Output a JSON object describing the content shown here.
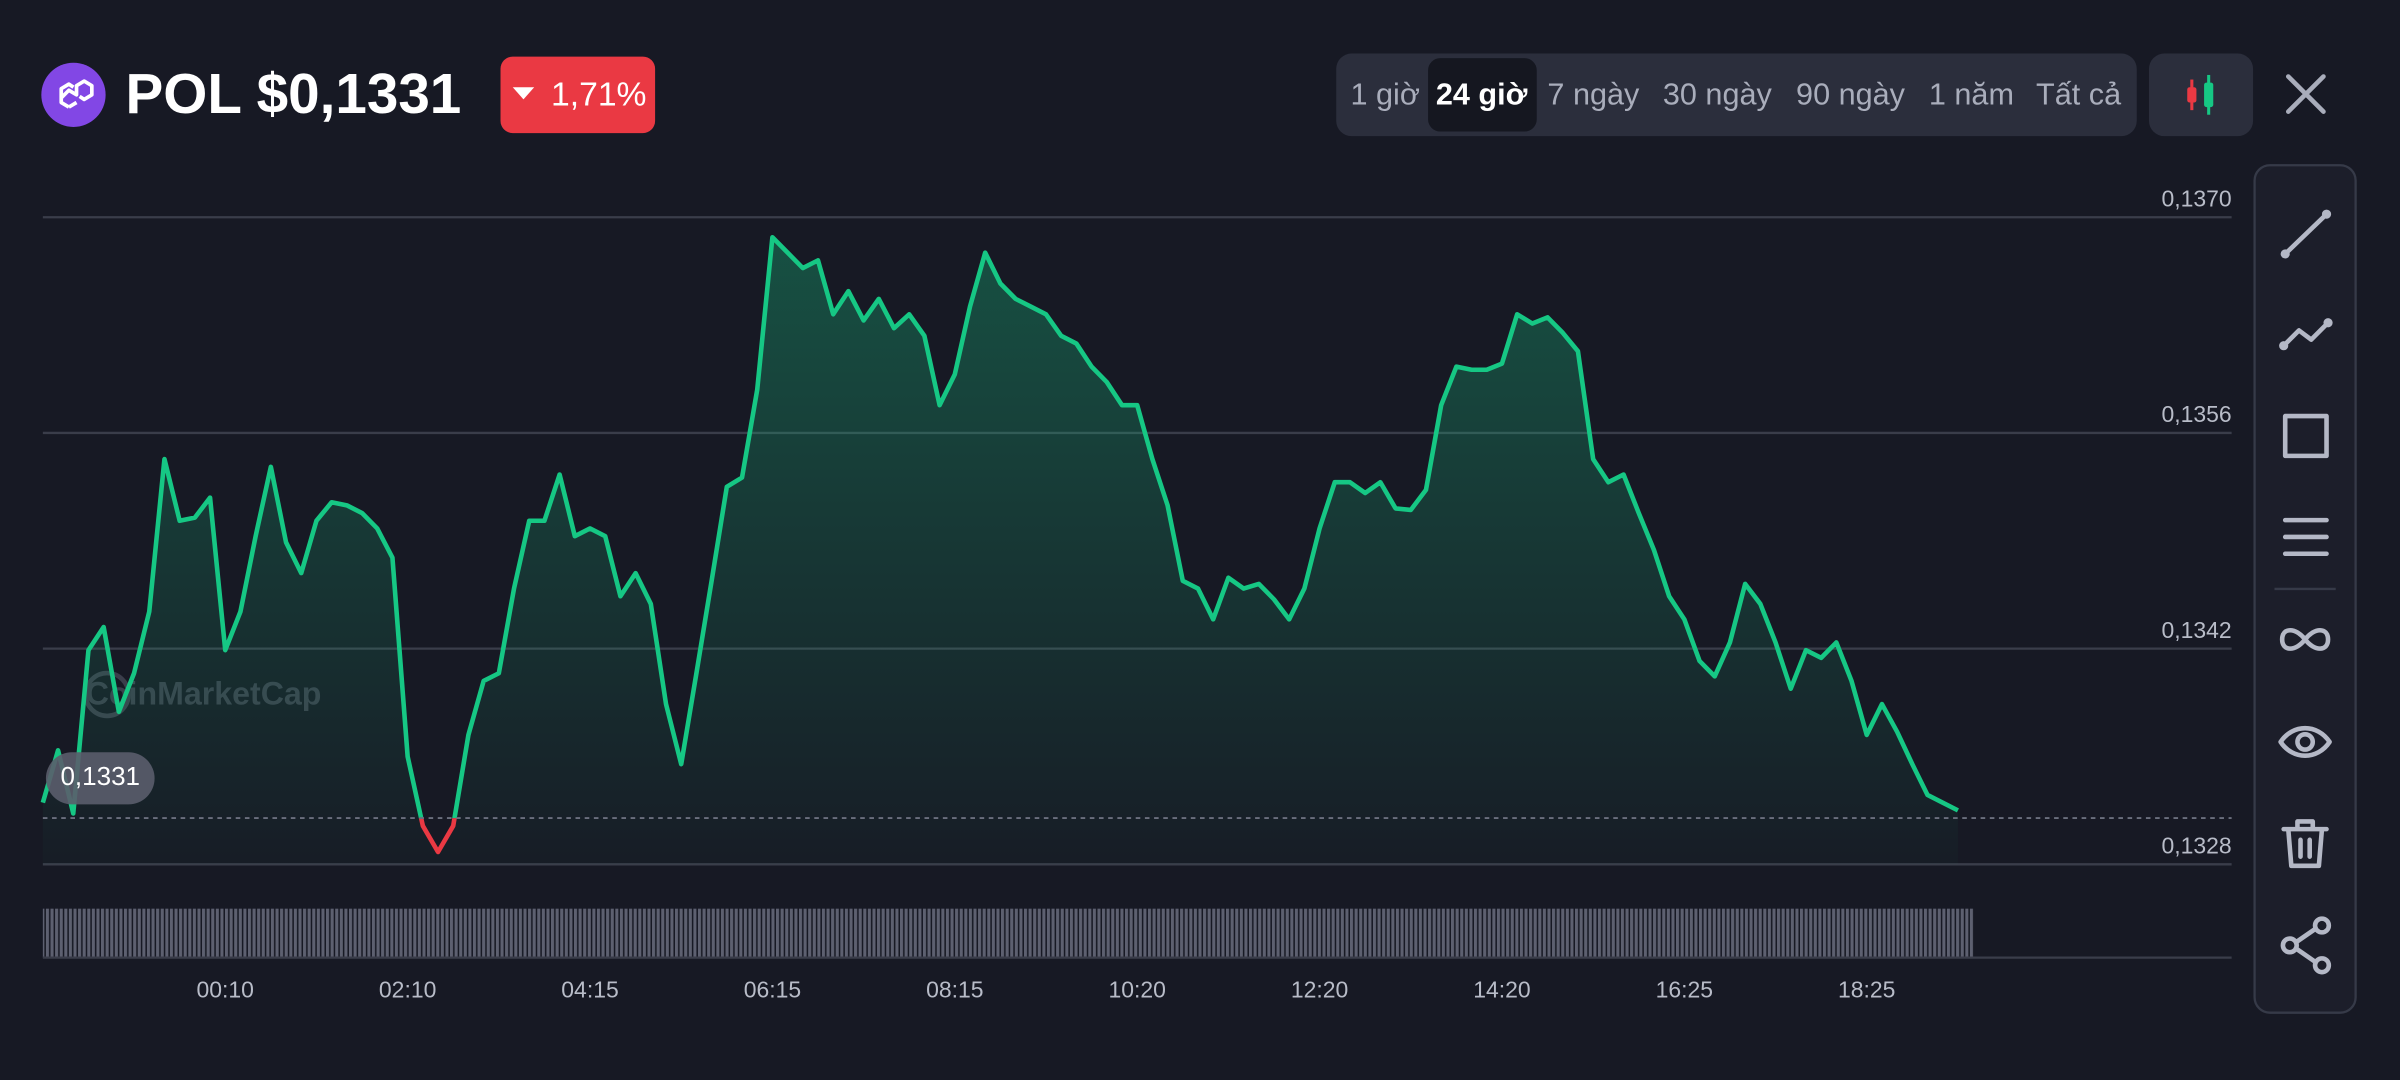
{
  "header": {
    "title": "POL $0,1331",
    "change": "1,71%"
  },
  "time_ranges": [
    "1 giờ",
    "24 giờ",
    "7 ngày",
    "30 ngày",
    "90 ngày",
    "1 năm",
    "Tất cả"
  ],
  "watermark": "CoinMarketCap",
  "chart_data": {
    "type": "line",
    "categories": [
      null,
      null,
      null,
      null,
      null,
      null,
      null,
      null,
      null,
      null,
      null,
      null,
      "00:10",
      null,
      null,
      null,
      null,
      null,
      null,
      null,
      null,
      null,
      null,
      null,
      "02:10",
      null,
      null,
      null,
      null,
      null,
      null,
      null,
      null,
      null,
      null,
      null,
      "04:15",
      null,
      null,
      null,
      null,
      null,
      null,
      null,
      null,
      null,
      null,
      null,
      "06:15",
      null,
      null,
      null,
      null,
      null,
      null,
      null,
      null,
      null,
      null,
      null,
      "08:15",
      null,
      null,
      null,
      null,
      null,
      null,
      null,
      null,
      null,
      null,
      null,
      "10:20",
      null,
      null,
      null,
      null,
      null,
      null,
      null,
      null,
      null,
      null,
      null,
      "12:20",
      null,
      null,
      null,
      null,
      null,
      null,
      null,
      null,
      null,
      null,
      null,
      "14:20",
      null,
      null,
      null,
      null,
      null,
      null,
      null,
      null,
      null,
      null,
      null,
      "16:25",
      null,
      null,
      null,
      null,
      null,
      null,
      null,
      null,
      null,
      null,
      null,
      "18:25",
      null,
      null,
      null,
      null,
      null,
      null
    ],
    "values": [
      0.1332,
      0.13354,
      0.13313,
      0.13419,
      0.13434,
      0.13379,
      0.13404,
      0.13444,
      0.13543,
      0.13503,
      0.13505,
      0.13518,
      0.13419,
      0.13444,
      0.13493,
      0.13538,
      0.13489,
      0.13469,
      0.13503,
      0.13515,
      0.13513,
      0.13508,
      0.13498,
      0.13479,
      0.1335,
      0.13305,
      0.13288,
      0.13305,
      0.13364,
      0.13399,
      0.13404,
      0.13459,
      0.13503,
      0.13503,
      0.13533,
      0.13493,
      0.13498,
      0.13493,
      0.13454,
      0.13469,
      0.13449,
      0.13384,
      0.13345,
      0.13404,
      0.13464,
      0.13525,
      0.13531,
      0.13588,
      0.13687,
      0.13677,
      0.13667,
      0.13672,
      0.13637,
      0.13652,
      0.13633,
      0.13647,
      0.13628,
      0.13637,
      0.13623,
      0.13578,
      0.13598,
      0.13642,
      0.13677,
      0.13657,
      0.13647,
      0.13642,
      0.13637,
      0.13623,
      0.13618,
      0.13603,
      0.13593,
      0.13578,
      0.13578,
      0.13543,
      0.13513,
      0.13464,
      0.13459,
      0.13439,
      0.13466,
      0.13459,
      0.13462,
      0.13452,
      0.13439,
      0.13459,
      0.13498,
      0.13528,
      0.13528,
      0.13521,
      0.13528,
      0.13511,
      0.1351,
      0.13523,
      0.13578,
      0.13603,
      0.13601,
      0.13601,
      0.13605,
      0.13637,
      0.13631,
      0.13635,
      0.13625,
      0.13613,
      0.13543,
      0.13528,
      0.13533,
      0.13508,
      0.13484,
      0.13454,
      0.13439,
      0.13412,
      0.13402,
      0.13424,
      0.13462,
      0.13449,
      0.13424,
      0.13394,
      0.13419,
      0.13414,
      0.13424,
      0.13399,
      0.13364,
      0.13384,
      0.13366,
      0.13345,
      0.13325,
      0.1332,
      0.13315
    ],
    "color": "#16c784",
    "below_color": "#ea3943",
    "price_line": {
      "value": 0.1331,
      "label": "0,1331"
    },
    "ylim": [
      0.1328,
      0.137
    ],
    "yticks": [
      {
        "value": 0.1328,
        "label": "0,1328"
      },
      {
        "value": 0.1342,
        "label": "0,1342"
      },
      {
        "value": 0.1356,
        "label": "0,1356"
      },
      {
        "value": 0.137,
        "label": "0,1370"
      }
    ],
    "grid": true
  }
}
